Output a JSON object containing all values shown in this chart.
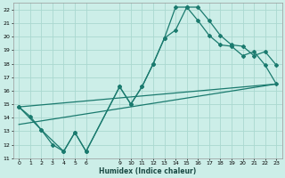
{
  "xlabel": "Humidex (Indice chaleur)",
  "bg_color": "#cceee8",
  "grid_color": "#aad8d0",
  "line_color": "#1a7a6e",
  "xlim": [
    -0.5,
    23.5
  ],
  "ylim": [
    11,
    22.5
  ],
  "xticks": [
    0,
    1,
    2,
    3,
    4,
    5,
    6,
    9,
    10,
    11,
    12,
    13,
    14,
    15,
    16,
    17,
    18,
    19,
    20,
    21,
    22,
    23
  ],
  "yticks": [
    11,
    12,
    13,
    14,
    15,
    16,
    17,
    18,
    19,
    20,
    21,
    22
  ],
  "line1_x": [
    0,
    1,
    2,
    3,
    4,
    5,
    6,
    9,
    10,
    11,
    12,
    13,
    14,
    15,
    16,
    17,
    18,
    19,
    20,
    21,
    22,
    23
  ],
  "line1_y": [
    14.8,
    14.1,
    13.1,
    12.0,
    11.5,
    12.9,
    11.5,
    16.3,
    15.0,
    16.3,
    18.0,
    19.9,
    20.5,
    22.2,
    22.2,
    21.2,
    20.1,
    19.4,
    19.3,
    18.6,
    18.9,
    17.9
  ],
  "line2_x": [
    0,
    2,
    4,
    5,
    6,
    9,
    10,
    11,
    12,
    13,
    14,
    15,
    16,
    17,
    18,
    19,
    20,
    21,
    22,
    23
  ],
  "line2_y": [
    14.8,
    13.1,
    11.5,
    12.9,
    11.5,
    16.3,
    15.0,
    16.3,
    18.0,
    19.9,
    22.2,
    22.2,
    21.2,
    20.1,
    19.4,
    19.3,
    18.6,
    18.9,
    17.9,
    16.5
  ],
  "line3_x": [
    0,
    23
  ],
  "line3_y": [
    13.5,
    16.5
  ],
  "line4_x": [
    0,
    23
  ],
  "line4_y": [
    14.8,
    16.5
  ],
  "markersize": 2.0,
  "linewidth": 0.9
}
